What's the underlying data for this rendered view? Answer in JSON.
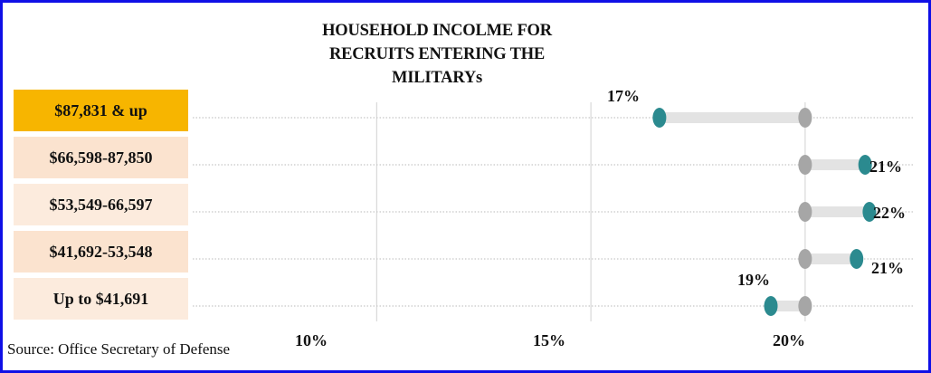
{
  "chart_data": {
    "type": "dumbbell",
    "title": "HOUSEHOLD INCOLME FOR RECRUITS ENTERING THE MILITARYs",
    "title_lines": [
      "HOUSEHOLD INCOLME FOR",
      "RECRUITS ENTERING THE",
      "MILITARYs"
    ],
    "categories": [
      "$87,831 & up",
      "$66,598-87,850",
      "$53,549-66,597",
      "$41,692-53,548",
      "Up to $41,691"
    ],
    "reference_values": [
      20,
      20,
      20,
      20,
      20
    ],
    "values": [
      16.6,
      21.4,
      21.5,
      21.2,
      19.2
    ],
    "value_labels": [
      "17%",
      "21%",
      "22%",
      "21%",
      "19%"
    ],
    "x_ticks": [
      10,
      15,
      20
    ],
    "x_tick_labels": [
      "10%",
      "15%",
      "20%"
    ],
    "xlim": [
      5.6,
      22.6
    ],
    "grid": true,
    "legend": "none",
    "colors": {
      "value_dot": "#2b8a8f",
      "reference_dot": "#a6a6a6",
      "bar": "#e3e3e3",
      "highlight_category": "#f7b500",
      "category_shades": [
        "#f7b500",
        "#fbe3cf",
        "#fcebdd",
        "#fbe3cf",
        "#fcebdd"
      ],
      "frame": "#1010e6"
    }
  },
  "source": "Source: Office Secretary  of Defense"
}
